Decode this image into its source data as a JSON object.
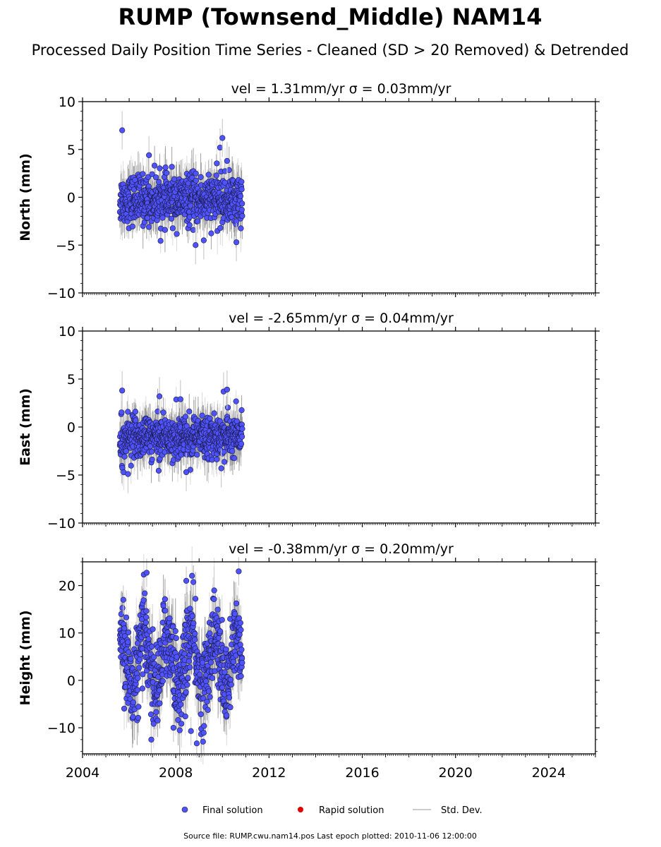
{
  "chart_data": {
    "type": "scatter",
    "title": "RUMP (Townsend_Middle) NAM14",
    "subtitle": "Processed Daily Position Time Series - Cleaned (SD > 20 Removed) & Detrended",
    "x_axis": {
      "range": [
        2004,
        2026
      ],
      "ticks": [
        2004,
        2008,
        2012,
        2016,
        2020,
        2024
      ],
      "tick_labels": [
        "2004",
        "2008",
        "2012",
        "2016",
        "2020",
        "2024"
      ]
    },
    "data_span": {
      "start": 2005.6,
      "end": 2010.85
    },
    "grid": false,
    "legend_placement": "bottom-center",
    "panels": [
      {
        "ylabel": "North (mm)",
        "title_text": "vel = 1.31mm/yr   σ = 0.03mm/yr",
        "ylim": [
          -10,
          10
        ],
        "yticks": [
          10,
          5,
          0,
          -5,
          -10
        ],
        "ytick_labels": [
          "10",
          "5",
          "0",
          "−5",
          "−10"
        ],
        "typical_range": [
          -2.5,
          2.0
        ],
        "notable_points": [
          [
            2005.7,
            7.0
          ],
          [
            2006.85,
            4.4
          ],
          [
            2009.9,
            5.2
          ],
          [
            2010.0,
            6.2
          ],
          [
            2010.2,
            3.8
          ],
          [
            2008.85,
            -5.0
          ],
          [
            2009.2,
            -4.5
          ],
          [
            2010.6,
            -4.7
          ]
        ]
      },
      {
        "ylabel": "East (mm)",
        "title_text": "vel = -2.65mm/yr   σ = 0.04mm/yr",
        "ylim": [
          -10,
          10
        ],
        "yticks": [
          10,
          5,
          0,
          -5,
          -10
        ],
        "ytick_labels": [
          "10",
          "5",
          "0",
          "−5",
          "−10"
        ],
        "typical_range": [
          -3.0,
          1.0
        ],
        "notable_points": [
          [
            2005.7,
            3.8
          ],
          [
            2007.3,
            3.2
          ],
          [
            2008.2,
            2.9
          ],
          [
            2010.05,
            3.7
          ],
          [
            2010.2,
            3.9
          ],
          [
            2005.95,
            -4.9
          ],
          [
            2008.45,
            -4.7
          ],
          [
            2009.95,
            -4.3
          ]
        ]
      },
      {
        "ylabel": "Height (mm)",
        "title_text": "vel = -0.38mm/yr   σ = 0.20mm/yr",
        "ylim": [
          -15.5,
          25
        ],
        "yticks": [
          20,
          10,
          0,
          -10
        ],
        "ytick_labels": [
          "20",
          "10",
          "0",
          "−10"
        ],
        "typical_range": [
          -6,
          14
        ],
        "notable_points": [
          [
            2005.75,
            17.0
          ],
          [
            2006.75,
            22.7
          ],
          [
            2008.45,
            21.0
          ],
          [
            2010.7,
            23.0
          ],
          [
            2008.65,
            -10.7
          ],
          [
            2008.9,
            -13.3
          ],
          [
            2006.95,
            -12.5
          ],
          [
            2007.9,
            -10.0
          ]
        ]
      }
    ],
    "legend": [
      {
        "label": "Final solution",
        "color": "#4f52ff",
        "marker": "circle"
      },
      {
        "label": "Rapid solution",
        "color": "#e00000",
        "marker": "circle"
      },
      {
        "label": "Std. Dev.",
        "color": "#cccccc",
        "marker": "line"
      }
    ],
    "source_note": "Source file: RUMP.cwu.nam14.pos  Last epoch plotted: 2010-11-06 12:00:00"
  }
}
